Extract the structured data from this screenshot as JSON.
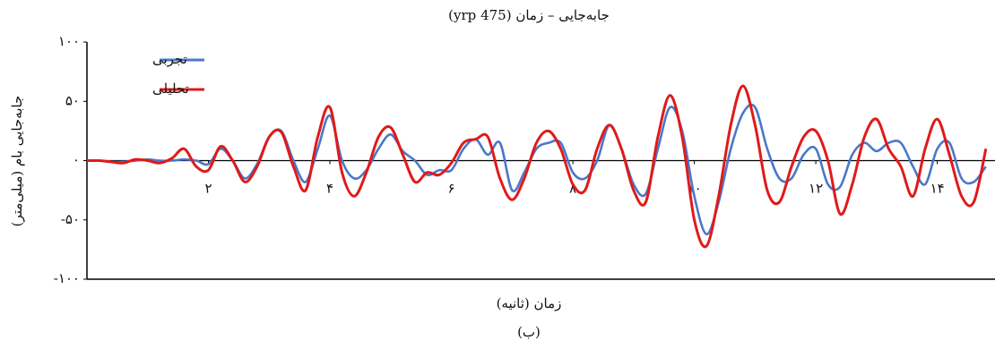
{
  "chart_data": {
    "type": "line",
    "title": "جابه‌جایی – زمان (475 yrp)",
    "x_label": "زمان (ثانیه)",
    "y_label": "جابه‌جایی بام (میلی‌متر)",
    "caption": "(ب)",
    "legend": "top-left",
    "xlim": [
      0,
      14.95
    ],
    "ylim": [
      -100,
      100
    ],
    "xticks": [
      {
        "value": 2,
        "label": "۲"
      },
      {
        "value": 4,
        "label": "۴"
      },
      {
        "value": 6,
        "label": "۶"
      },
      {
        "value": 8,
        "label": "۸"
      },
      {
        "value": 10,
        "label": "۱۰"
      },
      {
        "value": 12,
        "label": "۱۲"
      },
      {
        "value": 14,
        "label": "۱۴"
      }
    ],
    "yticks": [
      {
        "value": -100,
        "label": "-۱۰۰"
      },
      {
        "value": -50,
        "label": "-۵۰"
      },
      {
        "value": 0,
        "label": "۰"
      },
      {
        "value": 50,
        "label": "۵۰"
      },
      {
        "value": 100,
        "label": "۱۰۰"
      }
    ],
    "x": [
      0,
      0.2,
      0.4,
      0.6,
      0.8,
      1,
      1.2,
      1.4,
      1.6,
      1.8,
      2,
      2.2,
      2.4,
      2.6,
      2.8,
      3,
      3.2,
      3.4,
      3.6,
      3.8,
      4,
      4.2,
      4.4,
      4.6,
      4.8,
      5,
      5.2,
      5.4,
      5.6,
      5.8,
      6,
      6.2,
      6.4,
      6.6,
      6.8,
      7,
      7.2,
      7.4,
      7.6,
      7.8,
      8,
      8.2,
      8.4,
      8.6,
      8.8,
      9,
      9.2,
      9.4,
      9.6,
      9.8,
      10,
      10.2,
      10.4,
      10.6,
      10.8,
      11,
      11.2,
      11.4,
      11.6,
      11.8,
      12,
      12.2,
      12.4,
      12.6,
      12.8,
      13,
      13.2,
      13.4,
      13.6,
      13.8,
      14,
      14.2,
      14.4,
      14.6,
      14.8
    ],
    "series": [
      {
        "name": "تجربی",
        "color": "#4a78c8",
        "values": [
          0,
          0,
          -1,
          -1,
          0,
          1,
          0,
          0,
          1,
          0,
          -3,
          10,
          0,
          -15,
          -3,
          20,
          25,
          0,
          -18,
          10,
          38,
          0,
          -15,
          -8,
          10,
          22,
          8,
          0,
          -12,
          -8,
          -8,
          10,
          18,
          5,
          15,
          -25,
          -10,
          10,
          15,
          15,
          -10,
          -15,
          0,
          30,
          10,
          -20,
          -28,
          10,
          45,
          25,
          -30,
          -62,
          -35,
          10,
          40,
          45,
          10,
          -15,
          -15,
          5,
          10,
          -20,
          -22,
          5,
          15,
          8,
          15,
          15,
          -5,
          -20,
          10,
          15,
          -15,
          -18,
          -5
        ]
      },
      {
        "name": "تحلیلی",
        "color": "#e01a1a",
        "values": [
          0,
          0,
          -1,
          -2,
          1,
          0,
          -2,
          2,
          10,
          -5,
          -8,
          12,
          0,
          -18,
          -5,
          20,
          24,
          -5,
          -25,
          20,
          45,
          -10,
          -30,
          -10,
          20,
          28,
          5,
          -18,
          -10,
          -12,
          -2,
          15,
          18,
          20,
          -15,
          -33,
          -15,
          15,
          25,
          10,
          -20,
          -25,
          10,
          30,
          10,
          -25,
          -35,
          20,
          55,
          20,
          -50,
          -72,
          -30,
          30,
          63,
          30,
          -25,
          -35,
          -5,
          20,
          25,
          0,
          -45,
          -20,
          20,
          35,
          10,
          -5,
          -30,
          10,
          35,
          5,
          -30,
          -35,
          10
        ]
      }
    ]
  }
}
